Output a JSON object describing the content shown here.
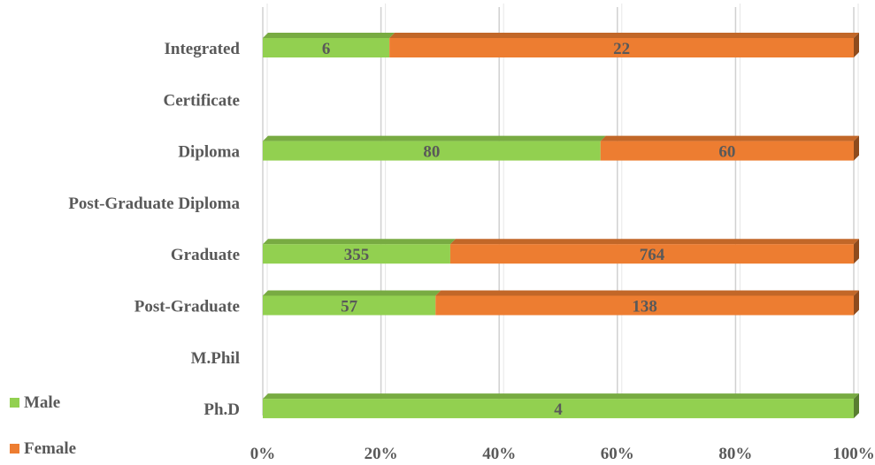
{
  "chart_data": {
    "type": "bar",
    "orientation": "horizontal",
    "stacking": "percent",
    "categories": [
      "Integrated",
      "Certificate",
      "Diploma",
      "Post-Graduate Diploma",
      "Graduate",
      "Post-Graduate",
      "M.Phil",
      "Ph.D"
    ],
    "series": [
      {
        "name": "Male",
        "color": "#92d050",
        "values": [
          6,
          null,
          80,
          null,
          355,
          57,
          null,
          4
        ]
      },
      {
        "name": "Female",
        "color": "#ed7d31",
        "values": [
          22,
          null,
          60,
          null,
          764,
          138,
          null,
          null
        ]
      }
    ],
    "x_ticks": [
      "0%",
      "20%",
      "40%",
      "60%",
      "80%",
      "100%"
    ],
    "xlim": [
      0,
      100
    ],
    "grid": true,
    "legend_position": "bottom-left"
  }
}
